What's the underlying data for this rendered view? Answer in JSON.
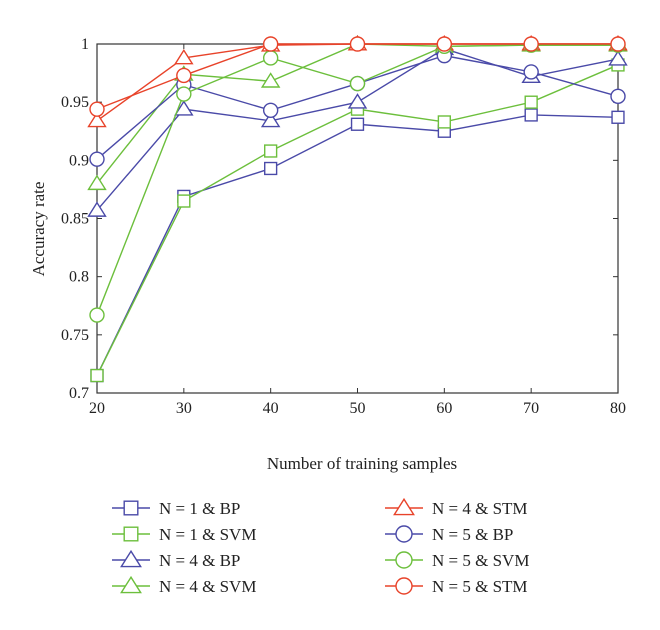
{
  "chart_data": {
    "type": "line",
    "xlabel": "Number of training samples",
    "ylabel": "Accuracy rate",
    "x": [
      20,
      30,
      40,
      50,
      60,
      70,
      80
    ],
    "xlim": [
      20,
      80
    ],
    "ylim": [
      0.7,
      1.0
    ],
    "xticks": [
      "20",
      "30",
      "40",
      "50",
      "60",
      "70",
      "80"
    ],
    "yticks": [
      "0.7",
      "0.75",
      "0.8",
      "0.85",
      "0.9",
      "0.95",
      "1"
    ],
    "ytick_values": [
      0.7,
      0.75,
      0.8,
      0.85,
      0.9,
      0.95,
      1.0
    ],
    "grid": false,
    "legend_position": "below",
    "series": [
      {
        "name": "N = 1 & BP",
        "color": "#4a4aa8",
        "marker": "square",
        "values": [
          0.715,
          0.869,
          0.893,
          0.931,
          0.925,
          0.939,
          0.937
        ]
      },
      {
        "name": "N = 1 & SVM",
        "color": "#6cbf3c",
        "marker": "square",
        "values": [
          0.715,
          0.865,
          0.908,
          0.944,
          0.933,
          0.95,
          0.982
        ]
      },
      {
        "name": "N = 4 & BP",
        "color": "#4a4aa8",
        "marker": "triangle",
        "values": [
          0.857,
          0.944,
          0.934,
          0.95,
          0.996,
          0.972,
          0.987
        ]
      },
      {
        "name": "N = 4 & SVM",
        "color": "#6cbf3c",
        "marker": "triangle",
        "values": [
          0.88,
          0.974,
          0.968,
          1.0,
          0.998,
          0.999,
          0.999
        ]
      },
      {
        "name": "N = 4 & STM",
        "color": "#e8432a",
        "marker": "triangle",
        "values": [
          0.934,
          0.988,
          0.999,
          1.0,
          1.0,
          1.0,
          1.0
        ]
      },
      {
        "name": "N = 5 & BP",
        "color": "#4a4aa8",
        "marker": "circle",
        "values": [
          0.901,
          0.965,
          0.943,
          0.966,
          0.99,
          0.976,
          0.955
        ]
      },
      {
        "name": "N = 5 & SVM",
        "color": "#6cbf3c",
        "marker": "circle",
        "values": [
          0.767,
          0.957,
          0.988,
          0.966,
          0.998,
          0.999,
          0.999
        ]
      },
      {
        "name": "N = 5 & STM",
        "color": "#e8432a",
        "marker": "circle",
        "values": [
          0.944,
          0.973,
          1.0,
          1.0,
          1.0,
          1.0,
          1.0
        ]
      }
    ]
  }
}
